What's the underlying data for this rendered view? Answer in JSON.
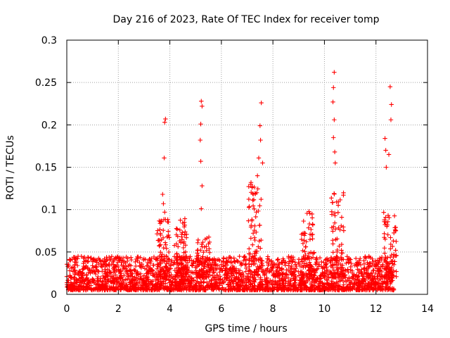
{
  "chart_data": {
    "type": "scatter",
    "title": "Day 216 of 2023, Rate Of TEC Index for receiver tomp",
    "xlabel": "GPS time / hours",
    "ylabel": "ROTI / TECUs",
    "xlim": [
      0,
      14
    ],
    "ylim": [
      0,
      0.3
    ],
    "grid": true,
    "marker": "+",
    "color": "#ff0000",
    "x_ticks": [
      "0",
      "2",
      "4",
      "6",
      "8",
      "10",
      "12",
      "14"
    ],
    "y_ticks": [
      "0",
      "0.05",
      "0.1",
      "0.15",
      "0.2",
      "0.25",
      "0.3"
    ],
    "x_tick_values": [
      0,
      2,
      4,
      6,
      8,
      10,
      12,
      14
    ],
    "y_tick_values": [
      0,
      0.05,
      0.1,
      0.15,
      0.2,
      0.25,
      0.3
    ],
    "data_range_hours": [
      0,
      12.7
    ],
    "series": [
      {
        "name": "ROTI",
        "spikes": [
          {
            "x": 3.83,
            "y": 0.207
          },
          {
            "x": 3.8,
            "y": 0.203
          },
          {
            "x": 3.78,
            "y": 0.161
          },
          {
            "x": 3.72,
            "y": 0.118
          },
          {
            "x": 3.75,
            "y": 0.107
          },
          {
            "x": 3.8,
            "y": 0.097
          },
          {
            "x": 5.22,
            "y": 0.228
          },
          {
            "x": 5.25,
            "y": 0.222
          },
          {
            "x": 5.2,
            "y": 0.201
          },
          {
            "x": 5.18,
            "y": 0.182
          },
          {
            "x": 5.2,
            "y": 0.157
          },
          {
            "x": 5.25,
            "y": 0.128
          },
          {
            "x": 5.22,
            "y": 0.101
          },
          {
            "x": 7.55,
            "y": 0.226
          },
          {
            "x": 7.5,
            "y": 0.199
          },
          {
            "x": 7.52,
            "y": 0.182
          },
          {
            "x": 7.45,
            "y": 0.161
          },
          {
            "x": 7.6,
            "y": 0.155
          },
          {
            "x": 7.15,
            "y": 0.132
          },
          {
            "x": 7.4,
            "y": 0.14
          },
          {
            "x": 10.38,
            "y": 0.262
          },
          {
            "x": 10.35,
            "y": 0.244
          },
          {
            "x": 10.33,
            "y": 0.227
          },
          {
            "x": 10.38,
            "y": 0.206
          },
          {
            "x": 10.35,
            "y": 0.185
          },
          {
            "x": 10.4,
            "y": 0.168
          },
          {
            "x": 10.42,
            "y": 0.155
          },
          {
            "x": 12.55,
            "y": 0.245
          },
          {
            "x": 12.6,
            "y": 0.224
          },
          {
            "x": 12.58,
            "y": 0.206
          },
          {
            "x": 12.35,
            "y": 0.184
          },
          {
            "x": 12.38,
            "y": 0.17
          },
          {
            "x": 12.4,
            "y": 0.15
          },
          {
            "x": 12.5,
            "y": 0.165
          }
        ],
        "clusters": [
          {
            "x": 3.75,
            "ymax": 0.09
          },
          {
            "x": 4.4,
            "ymax": 0.09
          },
          {
            "x": 5.3,
            "ymax": 0.07
          },
          {
            "x": 7.3,
            "ymax": 0.13
          },
          {
            "x": 9.35,
            "ymax": 0.098
          },
          {
            "x": 10.5,
            "ymax": 0.12
          },
          {
            "x": 12.55,
            "ymax": 0.1
          }
        ],
        "baseline_y": [
          0.005,
          0.045
        ]
      }
    ]
  }
}
